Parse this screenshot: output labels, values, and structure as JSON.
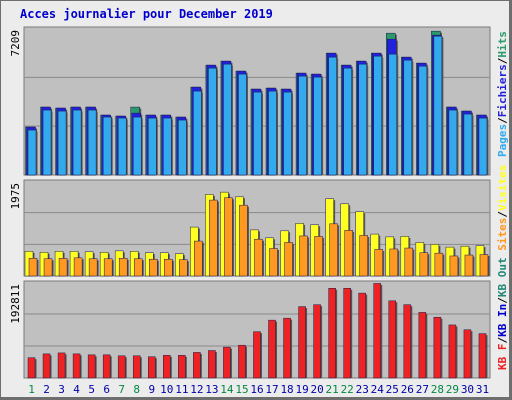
{
  "title": "Acces journalier pour December 2019",
  "colors": {
    "pages": "#33aaee",
    "fichiers": "#2222dd",
    "hits": "#2a9a6a",
    "visites": "#ffff22",
    "sites": "#ff9922",
    "kbf": "#ee2222",
    "kbin": "#0000cc",
    "kbout": "#228877",
    "weekend": "#008844",
    "weekday": "#0000aa"
  },
  "chart_data": [
    {
      "type": "bar",
      "categories": [
        "1",
        "2",
        "3",
        "4",
        "5",
        "6",
        "7",
        "8",
        "9",
        "10",
        "11",
        "12",
        "13",
        "14",
        "15",
        "16",
        "17",
        "18",
        "19",
        "20",
        "21",
        "22",
        "23",
        "24",
        "25",
        "26",
        "27",
        "28",
        "29",
        "30",
        "31"
      ],
      "weekend_days": [
        "1",
        "7",
        "8",
        "14",
        "15",
        "21",
        "22",
        "28",
        "29"
      ],
      "ymax_label": "7209",
      "ylim": [
        0,
        7209
      ],
      "series": [
        {
          "name": "Hits",
          "values": [
            2400,
            3400,
            3350,
            3400,
            3400,
            3000,
            2950,
            3400,
            3000,
            3000,
            2900,
            4400,
            5500,
            5700,
            5200,
            4300,
            4350,
            4300,
            5100,
            5050,
            6100,
            5500,
            5700,
            6100,
            7100,
            5900,
            5600,
            7200,
            3400,
            3200,
            3000
          ]
        },
        {
          "name": "Fichiers",
          "values": [
            2400,
            3400,
            3350,
            3400,
            3400,
            3000,
            2950,
            3100,
            3000,
            3000,
            2900,
            4400,
            5500,
            5700,
            5200,
            4300,
            4350,
            4300,
            5100,
            5050,
            6100,
            5500,
            5700,
            6100,
            6800,
            5900,
            5600,
            7000,
            3400,
            3200,
            3000
          ]
        },
        {
          "name": "Pages",
          "values": [
            2250,
            3250,
            3200,
            3250,
            3250,
            2900,
            2850,
            2900,
            2850,
            2850,
            2750,
            4200,
            5350,
            5550,
            5050,
            4150,
            4200,
            4150,
            4950,
            4900,
            5900,
            5350,
            5550,
            5950,
            6050,
            5750,
            5450,
            6950,
            3250,
            3050,
            2850
          ]
        }
      ],
      "axis_legend": [
        "Pages",
        "/",
        "Fichiers",
        "/",
        "Hits"
      ]
    },
    {
      "type": "bar",
      "categories": [
        "1",
        "2",
        "3",
        "4",
        "5",
        "6",
        "7",
        "8",
        "9",
        "10",
        "11",
        "12",
        "13",
        "14",
        "15",
        "16",
        "17",
        "18",
        "19",
        "20",
        "21",
        "22",
        "23",
        "24",
        "25",
        "26",
        "27",
        "28",
        "29",
        "30",
        "31"
      ],
      "ymax_label": "1975",
      "ylim": [
        0,
        1975
      ],
      "series": [
        {
          "name": "Visites",
          "values": [
            530,
            510,
            530,
            530,
            520,
            510,
            540,
            530,
            500,
            500,
            480,
            1050,
            1750,
            1800,
            1700,
            990,
            820,
            970,
            1130,
            1100,
            1660,
            1550,
            1380,
            900,
            840,
            850,
            720,
            680,
            620,
            640,
            650
          ]
        },
        {
          "name": "Sites",
          "values": [
            380,
            370,
            380,
            390,
            370,
            370,
            380,
            370,
            360,
            360,
            350,
            750,
            1630,
            1680,
            1520,
            790,
            590,
            720,
            860,
            850,
            1120,
            980,
            870,
            570,
            580,
            600,
            500,
            490,
            430,
            450,
            460
          ]
        }
      ],
      "axis_legend": [
        "Visites",
        "/",
        "Sites"
      ]
    },
    {
      "type": "bar",
      "categories": [
        "1",
        "2",
        "3",
        "4",
        "5",
        "6",
        "7",
        "8",
        "9",
        "10",
        "11",
        "12",
        "13",
        "14",
        "15",
        "16",
        "17",
        "18",
        "19",
        "20",
        "21",
        "22",
        "23",
        "24",
        "25",
        "26",
        "27",
        "28",
        "29",
        "30",
        "31"
      ],
      "ymax_label": "192811",
      "ylim": [
        0,
        192811
      ],
      "series": [
        {
          "name": "KB F",
          "values": [
            42000,
            50000,
            52000,
            50000,
            48000,
            48000,
            46000,
            46000,
            44000,
            47000,
            47000,
            53000,
            57000,
            64000,
            68000,
            96000,
            120000,
            124000,
            148000,
            152000,
            186000,
            186000,
            176000,
            196000,
            160000,
            152000,
            136000,
            126000,
            110000,
            100000,
            92000
          ]
        }
      ],
      "axis_legend": [
        "KB F",
        "/",
        "KB In",
        "/",
        "KB Out",
        "Sites",
        "/",
        "Visites"
      ]
    }
  ]
}
